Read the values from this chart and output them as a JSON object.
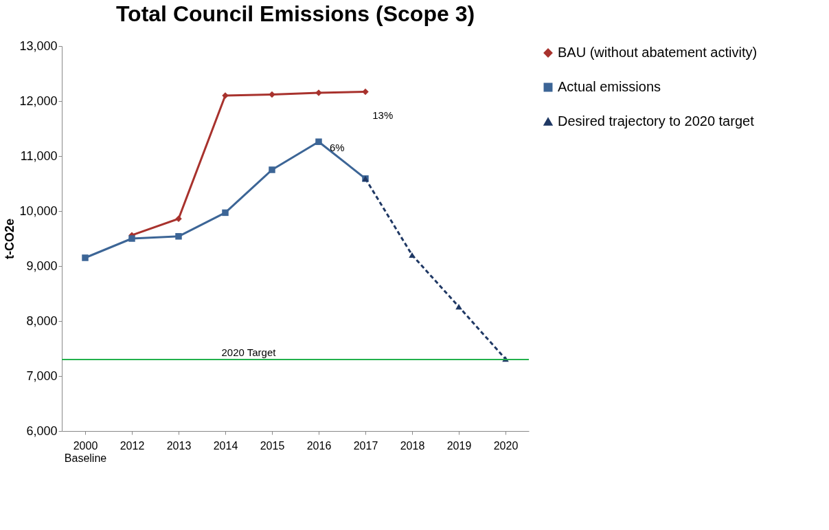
{
  "chart_data": {
    "type": "line",
    "title": "Total Council Emissions (Scope 3)",
    "ylabel": "t-CO2e",
    "categories": [
      "2000 Baseline",
      "2012",
      "2013",
      "2014",
      "2015",
      "2016",
      "2017",
      "2018",
      "2019",
      "2020"
    ],
    "series": [
      {
        "name": "BAU (without abatement activity)",
        "color": "#a8322d",
        "marker": "diamond",
        "line_style": "solid",
        "values": [
          null,
          9560,
          9860,
          12100,
          12120,
          12150,
          12170,
          null,
          null,
          null
        ]
      },
      {
        "name": "Actual emissions",
        "color": "#3c6596",
        "marker": "square",
        "line_style": "solid",
        "values": [
          9150,
          9500,
          9540,
          9970,
          10750,
          11260,
          10590,
          null,
          null,
          null
        ]
      },
      {
        "name": "Desired trajectory to 2020 target",
        "color": "#1f3864",
        "marker": "triangle",
        "line_style": "dashed",
        "values": [
          null,
          null,
          null,
          null,
          null,
          null,
          10590,
          9200,
          8260,
          7310
        ]
      }
    ],
    "ylim": [
      6000,
      13000
    ],
    "yticks": [
      {
        "value": 6000,
        "label": "6,000"
      },
      {
        "value": 7000,
        "label": "7,000"
      },
      {
        "value": 8000,
        "label": "8,000"
      },
      {
        "value": 9000,
        "label": "9,000"
      },
      {
        "value": 10000,
        "label": "10,000"
      },
      {
        "value": 11000,
        "label": "11,000"
      },
      {
        "value": 12000,
        "label": "12,000"
      },
      {
        "value": 13000,
        "label": "13,000"
      }
    ],
    "grid": false,
    "legend": "right",
    "ref_lines": [
      {
        "axis": "y",
        "value": 7300,
        "label": "2020 Target",
        "color": "#22b14c"
      }
    ],
    "annotations": [
      {
        "text": "6%",
        "x": "2016",
        "y": 11150
      },
      "13%"
    ]
  }
}
